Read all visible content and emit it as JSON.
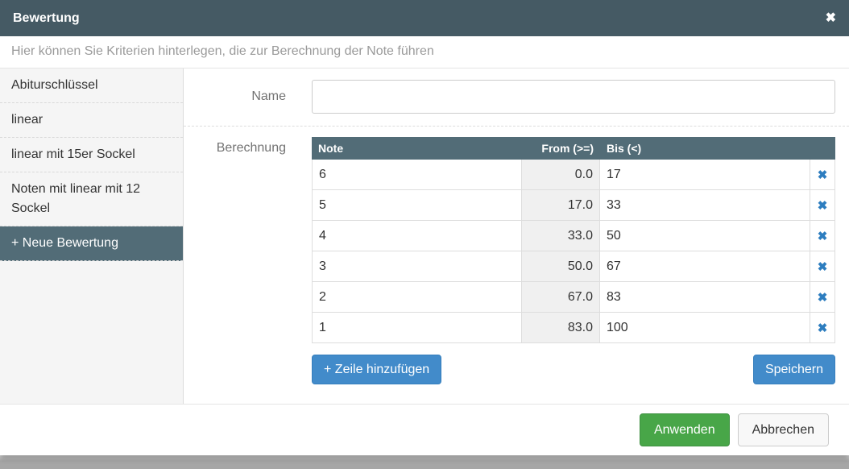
{
  "colors": {
    "header_bg": "#455a64",
    "accent_slate": "#526c77",
    "primary_blue": "#428bca",
    "primary_blue_border": "#357ebd",
    "success_green": "#48a648",
    "success_green_border": "#3f9142",
    "delete_x_blue": "#2d7dbf",
    "sidebar_bg": "#f5f5f5",
    "readonly_cell_bg": "#f0f0f0"
  },
  "modal": {
    "title": "Bewertung",
    "subtitle": "Hier können Sie Kriterien hinterlegen, die zur Berechnung der Note führen",
    "close_icon": "✖"
  },
  "sidebar": {
    "items": [
      {
        "label": "Abiturschlüssel"
      },
      {
        "label": "linear"
      },
      {
        "label": "linear mit 15er Sockel"
      },
      {
        "label": "Noten mit linear mit 12 Sockel"
      },
      {
        "label": "+ Neue Bewertung"
      }
    ]
  },
  "form": {
    "name_label": "Name",
    "name_value": "",
    "calc_label": "Berechnung"
  },
  "table": {
    "columns": [
      "Note",
      "From (>=)",
      "Bis (<)"
    ],
    "delete_icon": "✖",
    "rows": [
      {
        "note": "6",
        "from": "0.0",
        "bis": "17"
      },
      {
        "note": "5",
        "from": "17.0",
        "bis": "33"
      },
      {
        "note": "4",
        "from": "33.0",
        "bis": "50"
      },
      {
        "note": "3",
        "from": "50.0",
        "bis": "67"
      },
      {
        "note": "2",
        "from": "67.0",
        "bis": "83"
      },
      {
        "note": "1",
        "from": "83.0",
        "bis": "100"
      }
    ]
  },
  "buttons": {
    "add_row": "+ Zeile hinzufügen",
    "save": "Speichern",
    "apply": "Anwenden",
    "cancel": "Abbrechen"
  }
}
